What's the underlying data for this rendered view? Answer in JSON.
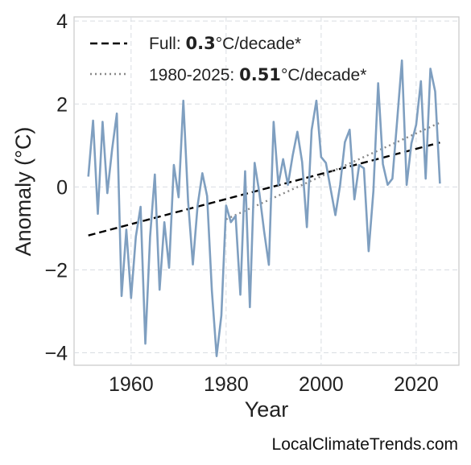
{
  "chart_data": {
    "type": "line",
    "xlabel": "Year",
    "ylabel": "Anomaly (°C)",
    "xlim": [
      1948,
      2029
    ],
    "ylim": [
      -4.3,
      4.1
    ],
    "xticks": [
      1960,
      1980,
      2000,
      2020
    ],
    "yticks": [
      4,
      2,
      0,
      -2,
      -4
    ],
    "ytick_labels": [
      "4",
      "2",
      "0",
      "−2",
      "−4"
    ],
    "grid": true,
    "legend_position": "top-left",
    "series": [
      {
        "style": "solid",
        "color": "#7f9fc0",
        "x": [
          1951,
          1952,
          1953,
          1954,
          1955,
          1956,
          1957,
          1958,
          1959,
          1960,
          1961,
          1962,
          1963,
          1964,
          1965,
          1966,
          1967,
          1968,
          1969,
          1970,
          1971,
          1972,
          1973,
          1974,
          1975,
          1976,
          1977,
          1978,
          1979,
          1980,
          1981,
          1982,
          1983,
          1984,
          1985,
          1986,
          1987,
          1988,
          1989,
          1990,
          1991,
          1992,
          1993,
          1994,
          1995,
          1996,
          1997,
          1998,
          1999,
          2000,
          2001,
          2002,
          2003,
          2004,
          2005,
          2006,
          2007,
          2008,
          2009,
          2010,
          2011,
          2012,
          2013,
          2014,
          2015,
          2016,
          2017,
          2018,
          2019,
          2020,
          2021,
          2022,
          2023,
          2024,
          2025
        ],
        "y": [
          0.25,
          1.6,
          -0.65,
          1.57,
          -0.15,
          0.9,
          1.77,
          -2.63,
          -1.03,
          -2.68,
          -1.2,
          -0.48,
          -3.78,
          -1.2,
          0.3,
          -2.48,
          -0.85,
          -1.95,
          0.53,
          -0.25,
          2.08,
          -0.35,
          -1.87,
          -0.45,
          0.33,
          -0.22,
          -2.5,
          -4.08,
          -3.1,
          -0.45,
          -0.85,
          -0.7,
          -2.6,
          0.38,
          -2.9,
          0.58,
          -0.15,
          -1.07,
          -1.88,
          1.57,
          0.05,
          0.67,
          0.05,
          0.75,
          1.33,
          0.6,
          -0.97,
          1.37,
          2.08,
          0.72,
          0.58,
          -0.05,
          -0.68,
          0.05,
          1.08,
          1.38,
          -0.3,
          0.53,
          0.45,
          -1.55,
          -0.1,
          2.5,
          0.55,
          0.05,
          0.2,
          1.6,
          3.05,
          0.05,
          1.05,
          1.5,
          2.55,
          0.2,
          2.85,
          2.3,
          0.08
        ]
      }
    ],
    "trends": [
      {
        "style": "dashed",
        "color": "#000000",
        "x": [
          1951,
          2025
        ],
        "y": [
          -1.17,
          1.07
        ]
      },
      {
        "style": "dotted",
        "color": "#888888",
        "x": [
          1980,
          2025
        ],
        "y": [
          -0.78,
          1.55
        ]
      }
    ]
  },
  "legend": [
    {
      "prefix": "Full: ",
      "value": "0.3",
      "suffix": "°C/decade*"
    },
    {
      "prefix": "1980-2025: ",
      "value": "0.51",
      "suffix": "°C/decade*"
    }
  ],
  "watermark": "LocalClimateTrends.com",
  "colors": {
    "series": "#7f9fc0",
    "full_trend": "#000000",
    "recent_trend": "#888888",
    "grid": "#d9dde2",
    "frame": "#c8c8c8"
  }
}
